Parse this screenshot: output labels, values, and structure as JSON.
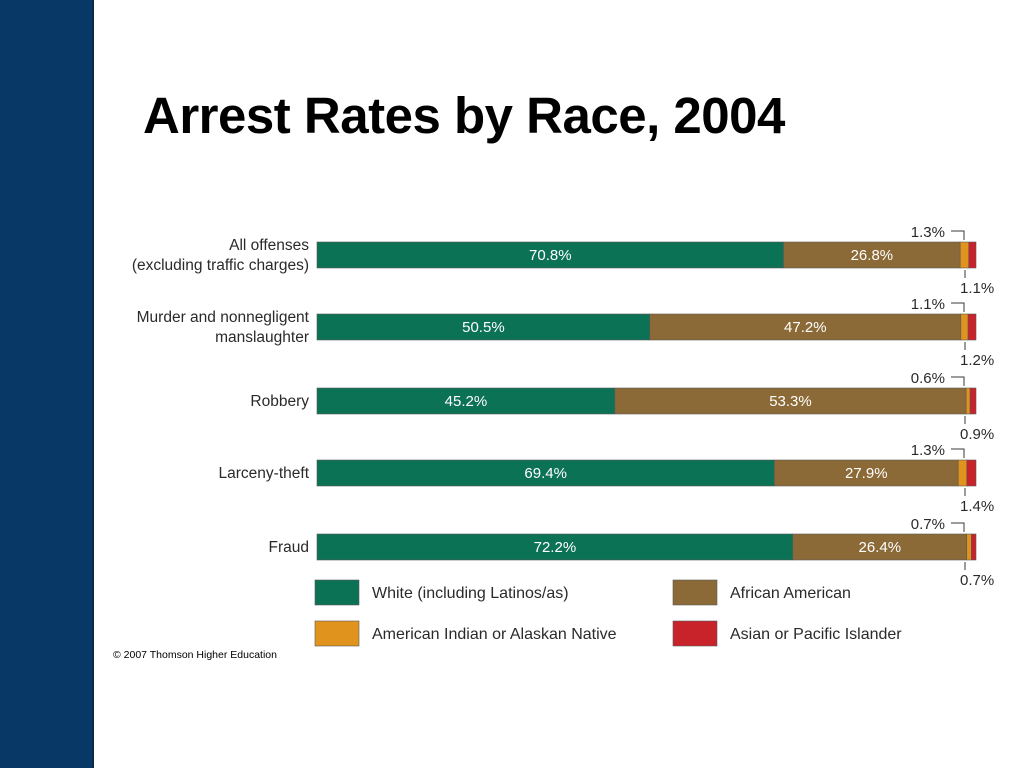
{
  "slide": {
    "title": "Arrest Rates by Race, 2004",
    "copyright": "© 2007 Thomson Higher Education"
  },
  "colors": {
    "side_band": "#073866",
    "white_series": "#0b7255",
    "african_american_series": "#8c6a37",
    "american_indian_series": "#e0941e",
    "asian_series": "#c8222b"
  },
  "chart_data": {
    "type": "bar",
    "orientation": "horizontal",
    "stacked": true,
    "title": "",
    "xlabel": "",
    "ylabel": "",
    "xlim": [
      0,
      100
    ],
    "grid": false,
    "legend_position": "bottom",
    "categories": [
      [
        "All offenses",
        "(excluding traffic charges)"
      ],
      [
        "Murder and nonnegligent",
        "manslaughter"
      ],
      [
        "Robbery"
      ],
      [
        "Larceny-theft"
      ],
      [
        "Fraud"
      ]
    ],
    "series": [
      {
        "name": "White (including Latinos/as)",
        "color": "#0b7255",
        "values": [
          70.8,
          50.5,
          45.2,
          69.4,
          72.2
        ],
        "labels": [
          "70.8%",
          "50.5%",
          "45.2%",
          "69.4%",
          "72.2%"
        ]
      },
      {
        "name": "African American",
        "color": "#8c6a37",
        "values": [
          26.8,
          47.2,
          53.3,
          27.9,
          26.4
        ],
        "labels": [
          "26.8%",
          "47.2%",
          "53.3%",
          "27.9%",
          "26.4%"
        ]
      },
      {
        "name": "American Indian or Alaskan Native",
        "color": "#e0941e",
        "values": [
          1.3,
          1.1,
          0.6,
          1.3,
          0.7
        ],
        "labels": [
          "1.3%",
          "1.1%",
          "0.6%",
          "1.3%",
          "0.7%"
        ]
      },
      {
        "name": "Asian or Pacific Islander",
        "color": "#c8222b",
        "values": [
          1.1,
          1.2,
          0.9,
          1.4,
          0.7
        ],
        "labels": [
          "1.1%",
          "1.2%",
          "0.9%",
          "1.4%",
          "0.7%"
        ]
      }
    ],
    "legend_order": [
      0,
      1,
      2,
      3
    ]
  }
}
